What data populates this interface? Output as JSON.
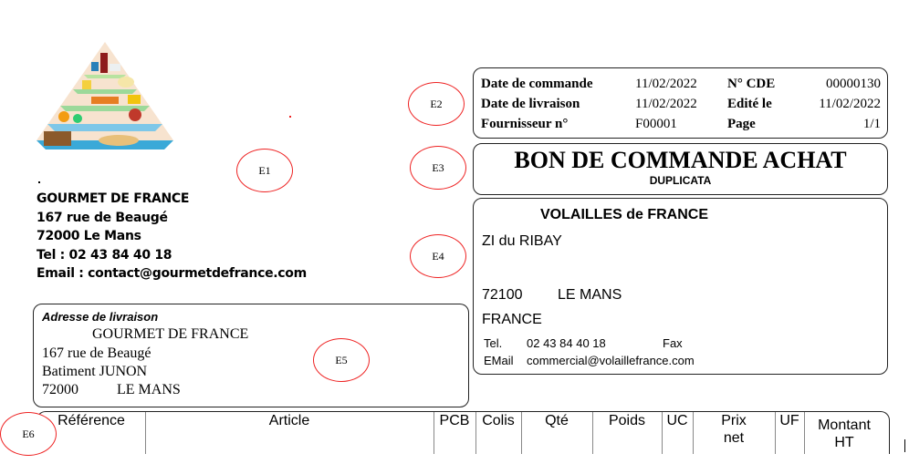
{
  "logo": {
    "icon": "food-pyramid-image"
  },
  "company": {
    "name": "GOURMET DE FRANCE",
    "street": "167 rue de Beaugé",
    "city": "72000 Le Mans",
    "tel": "Tel : 02 43 84 40 18",
    "email": "Email : contact@gourmetdefrance.com"
  },
  "order_info": {
    "date_commande_label": "Date de commande",
    "date_commande": "11/02/2022",
    "date_livraison_label": "Date de livraison",
    "date_livraison": "11/02/2022",
    "fournisseur_label": "Fournisseur n°",
    "fournisseur": "F00001",
    "cde_label": "N° CDE",
    "cde": "00000130",
    "edite_label": "Edité le",
    "edite": "11/02/2022",
    "page_label": "Page",
    "page": "1/1"
  },
  "title": {
    "main": "BON DE COMMANDE ACHAT",
    "sub": "DUPLICATA"
  },
  "supplier": {
    "name": "VOLAILLES de FRANCE",
    "street": "ZI du RIBAY",
    "postcode": "72100",
    "city": "LE MANS",
    "country": "FRANCE",
    "tel_label": "Tel.",
    "tel": "02 43 84 40 18",
    "fax_label": "Fax",
    "email_label": "EMail",
    "email": "commercial@volaillefrance.com"
  },
  "delivery": {
    "label": "Adresse de livraison",
    "name": "GOURMET DE FRANCE",
    "street": "167 rue de Beaugé",
    "building": "Batiment JUNON",
    "postcode": "72000",
    "city": "LE MANS"
  },
  "table": {
    "headers": [
      "Référence",
      "Article",
      "PCB",
      "Colis",
      "Qté",
      "Poids",
      "UC",
      "Prix net",
      "UF",
      "Montant HT"
    ]
  },
  "markers": [
    "E1",
    "E2",
    "E3",
    "E4",
    "E5",
    "E6"
  ],
  "colors": {
    "marker": "#e22222"
  }
}
